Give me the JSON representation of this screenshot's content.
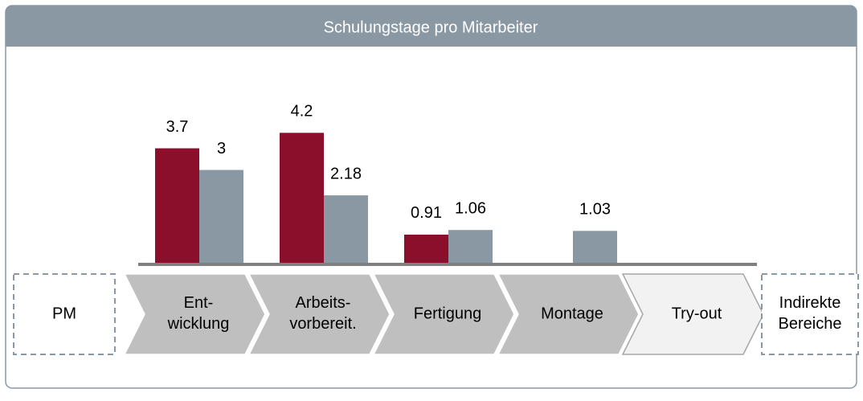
{
  "chart_data": {
    "type": "bar",
    "title": "Schulungstage pro Mitarbeiter",
    "categories": [
      "Ent-\nwicklung",
      "Arbeits-\nvorbereit.",
      "Fertigung",
      "Montage",
      "Try-out"
    ],
    "series": [
      {
        "color": "#8b0e2a",
        "values": [
          3.7,
          4.2,
          0.91,
          null,
          null
        ]
      },
      {
        "color": "#8a98a3",
        "values": [
          3,
          2.18,
          1.06,
          1.03,
          null
        ]
      }
    ],
    "side_boxes": [
      "PM",
      "Indirekte\nBereiche"
    ]
  }
}
